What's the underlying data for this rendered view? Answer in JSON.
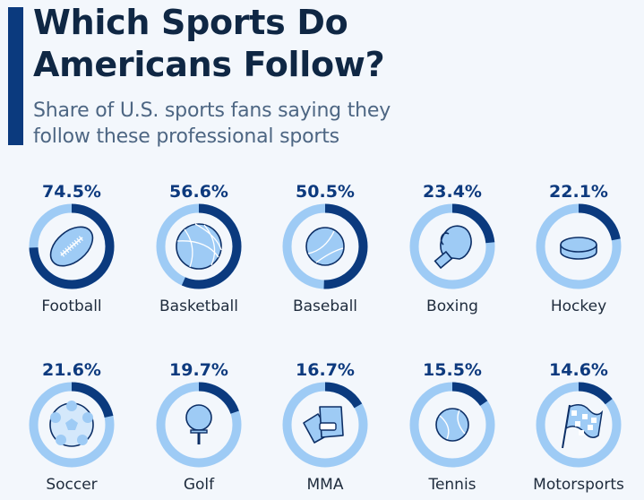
{
  "header": {
    "title_line1": "Which Sports Do",
    "title_line2": "Americans Follow?",
    "subtitle_line1": "Share of U.S. sports fans saying they",
    "subtitle_line2": "follow these professional sports"
  },
  "colors": {
    "background": "#F3F7FC",
    "accent": "#0B3A7E",
    "filled": "#0B3A7E",
    "remainder": "#9ECBF5",
    "title": "#0F2744",
    "subtitle": "#4D6683"
  },
  "chart_data": {
    "type": "pie",
    "subtype": "donut-grid",
    "title": "Which Sports Do Americans Follow?",
    "subtitle": "Share of U.S. sports fans saying they follow these professional sports",
    "unit": "%",
    "max": 100,
    "categories": [
      "Football",
      "Basketball",
      "Baseball",
      "Boxing",
      "Hockey",
      "Soccer",
      "Golf",
      "MMA",
      "Tennis",
      "Motorsports"
    ],
    "values": [
      74.5,
      56.6,
      50.5,
      23.4,
      22.1,
      21.6,
      19.7,
      16.7,
      15.5,
      14.6
    ],
    "value_labels": [
      "74.5%",
      "56.6%",
      "50.5%",
      "23.4%",
      "22.1%",
      "21.6%",
      "19.7%",
      "16.7%",
      "15.5%",
      "14.6%"
    ],
    "icons": [
      "football-icon",
      "basketball-icon",
      "baseball-icon",
      "boxing-glove-icon",
      "hockey-puck-icon",
      "soccer-ball-icon",
      "golf-ball-icon",
      "mma-gloves-icon",
      "tennis-ball-icon",
      "checkered-flag-icon"
    ]
  }
}
